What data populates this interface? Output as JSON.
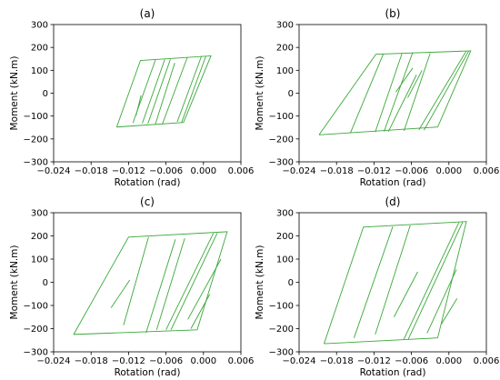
{
  "chart_data": [
    {
      "type": "line",
      "title": "(a)",
      "xlabel": "Rotation (rad)",
      "ylabel": "Moment (kN.m)",
      "xlim": [
        -0.024,
        0.006
      ],
      "ylim": [
        -300,
        300
      ],
      "xticks": [
        "−0.024",
        "−0.018",
        "−0.012",
        "−0.006",
        "0.000",
        "0.006"
      ],
      "yticks": [
        "300",
        "200",
        "100",
        "0",
        "−100",
        "−200",
        "−300"
      ],
      "line_color": "#3aa83a",
      "series": [
        {
          "x": [
            -0.0139,
            -0.0032,
            0.0012,
            -0.0101,
            -0.0139
          ],
          "y": [
            -148,
            -128,
            163,
            143,
            -148
          ]
        },
        {
          "x": [
            -0.0113,
            -0.0077
          ],
          "y": [
            -130,
            145
          ]
        },
        {
          "x": [
            -0.0098,
            -0.0062
          ],
          "y": [
            -132,
            147
          ]
        },
        {
          "x": [
            -0.0089,
            -0.0053
          ],
          "y": [
            -133,
            148
          ]
        },
        {
          "x": [
            -0.0077,
            -0.0046
          ],
          "y": [
            -135,
            132
          ]
        },
        {
          "x": [
            -0.0066,
            -0.0026
          ],
          "y": [
            -136,
            155
          ]
        },
        {
          "x": [
            -0.0042,
            -0.0003
          ],
          "y": [
            -125,
            163
          ]
        },
        {
          "x": [
            -0.0035,
            0.0004
          ],
          "y": [
            -128,
            163
          ]
        },
        {
          "x": [
            -0.0108,
            -0.01
          ],
          "y": [
            -98,
            -10
          ]
        }
      ]
    },
    {
      "type": "line",
      "title": "(b)",
      "xlabel": "Rotation (rad)",
      "ylabel": "Moment (kN.m)",
      "xlim": [
        -0.024,
        0.006
      ],
      "ylim": [
        -300,
        300
      ],
      "xticks": [
        "−0.024",
        "−0.018",
        "−0.012",
        "−0.006",
        "0.000",
        "0.006"
      ],
      "yticks": [
        "300",
        "200",
        "100",
        "0",
        "−100",
        "−200",
        "−300"
      ],
      "line_color": "#3aa83a",
      "series": [
        {
          "x": [
            -0.0208,
            -0.0018,
            0.0035,
            -0.0117,
            -0.0208
          ],
          "y": [
            -182,
            -148,
            185,
            170,
            -182
          ]
        },
        {
          "x": [
            -0.0158,
            -0.0105
          ],
          "y": [
            -175,
            172
          ]
        },
        {
          "x": [
            -0.0118,
            -0.0075
          ],
          "y": [
            -170,
            175
          ]
        },
        {
          "x": [
            -0.0104,
            -0.0058
          ],
          "y": [
            -168,
            178
          ]
        },
        {
          "x": [
            -0.0097,
            -0.0052
          ],
          "y": [
            -168,
            80
          ]
        },
        {
          "x": [
            -0.0072,
            -0.003
          ],
          "y": [
            -165,
            175
          ]
        },
        {
          "x": [
            -0.0048,
            0.0028
          ],
          "y": [
            -160,
            185
          ]
        },
        {
          "x": [
            -0.004,
            0.0032
          ],
          "y": [
            -162,
            185
          ]
        },
        {
          "x": [
            -0.0085,
            -0.0058
          ],
          "y": [
            5,
            110
          ]
        },
        {
          "x": [
            -0.0066,
            -0.0043
          ],
          "y": [
            -20,
            100
          ]
        }
      ]
    },
    {
      "type": "line",
      "title": "(c)",
      "xlabel": "Rotation (rad)",
      "ylabel": "Moment (kN.m)",
      "xlim": [
        -0.024,
        0.006
      ],
      "ylim": [
        -300,
        300
      ],
      "xticks": [
        "−0.024",
        "−0.018",
        "−0.012",
        "−0.006",
        "0.000",
        "0.006"
      ],
      "yticks": [
        "300",
        "200",
        "100",
        "0",
        "−100",
        "−200",
        "−300"
      ],
      "line_color": "#3aa83a",
      "series": [
        {
          "x": [
            -0.0208,
            -0.001,
            0.0038,
            -0.012,
            -0.0208
          ],
          "y": [
            -225,
            -205,
            218,
            195,
            -225
          ]
        },
        {
          "x": [
            -0.0148,
            -0.0118
          ],
          "y": [
            -110,
            10
          ]
        },
        {
          "x": [
            -0.0128,
            -0.0088
          ],
          "y": [
            -185,
            195
          ]
        },
        {
          "x": [
            -0.0092,
            -0.0045
          ],
          "y": [
            -218,
            185
          ]
        },
        {
          "x": [
            -0.0075,
            -0.003
          ],
          "y": [
            -205,
            190
          ]
        },
        {
          "x": [
            -0.006,
            0.0016
          ],
          "y": [
            -205,
            212
          ]
        },
        {
          "x": [
            -0.0052,
            0.0022
          ],
          "y": [
            -205,
            212
          ]
        },
        {
          "x": [
            -0.0025,
            0.0028
          ],
          "y": [
            -160,
            100
          ]
        },
        {
          "x": [
            -0.002,
            0.001
          ],
          "y": [
            -200,
            -52
          ]
        }
      ]
    },
    {
      "type": "line",
      "title": "(d)",
      "xlabel": "Rotation (rad)",
      "ylabel": "Moment (kN.m)",
      "xlim": [
        -0.024,
        0.006
      ],
      "ylim": [
        -300,
        300
      ],
      "xticks": [
        "−0.024",
        "−0.018",
        "−0.012",
        "−0.006",
        "0.000",
        "0.006"
      ],
      "yticks": [
        "300",
        "200",
        "100",
        "0",
        "−100",
        "−200",
        "−300"
      ],
      "line_color": "#3aa83a",
      "series": [
        {
          "x": [
            -0.02,
            -0.0018,
            0.0028,
            -0.0137,
            -0.02
          ],
          "y": [
            -265,
            -240,
            262,
            238,
            -265
          ]
        },
        {
          "x": [
            -0.0152,
            -0.009
          ],
          "y": [
            -240,
            240
          ]
        },
        {
          "x": [
            -0.0118,
            -0.0062
          ],
          "y": [
            -225,
            245
          ]
        },
        {
          "x": [
            -0.0088,
            -0.005
          ],
          "y": [
            -150,
            45
          ]
        },
        {
          "x": [
            -0.0072,
            0.0016
          ],
          "y": [
            -245,
            258
          ]
        },
        {
          "x": [
            -0.0065,
            0.0022
          ],
          "y": [
            -245,
            260
          ]
        },
        {
          "x": [
            -0.0035,
            0.0012
          ],
          "y": [
            -220,
            55
          ]
        },
        {
          "x": [
            -0.0012,
            0.0013
          ],
          "y": [
            -180,
            -70
          ]
        }
      ]
    }
  ]
}
